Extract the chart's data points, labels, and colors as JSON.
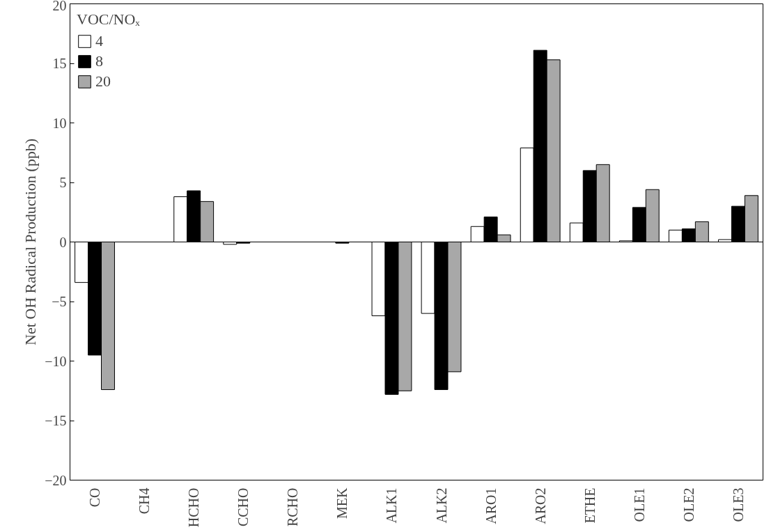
{
  "chart_data": {
    "type": "bar",
    "ylabel": "Net OH Radical Production (ppb)",
    "legend_title": "VOC/NOₓ",
    "categories": [
      "CO",
      "CH4",
      "HCHO",
      "CCHO",
      "RCHO",
      "MEK",
      "ALK1",
      "ALK2",
      "ARO1",
      "ARO2",
      "ETHE",
      "OLE1",
      "OLE2",
      "OLE3"
    ],
    "series": [
      {
        "name": "4",
        "color": "#ffffff",
        "values": [
          -3.4,
          null,
          3.8,
          -0.2,
          null,
          null,
          -6.2,
          -6.0,
          1.3,
          7.9,
          1.6,
          0.1,
          1.0,
          0.2
        ]
      },
      {
        "name": "8",
        "color": "#000000",
        "values": [
          -9.5,
          null,
          4.3,
          -0.1,
          null,
          -0.1,
          -12.8,
          -12.4,
          2.1,
          16.1,
          6.0,
          2.9,
          1.1,
          3.0
        ]
      },
      {
        "name": "20",
        "color": "#a8a8a8",
        "values": [
          -12.4,
          null,
          3.4,
          null,
          null,
          null,
          -12.5,
          -10.9,
          0.6,
          15.3,
          6.5,
          4.4,
          1.7,
          3.9
        ]
      }
    ],
    "ref_lines": [
      {
        "axis": "y",
        "value": 0
      }
    ],
    "ylim": [
      -20,
      20
    ],
    "yticks": [
      -20,
      -15,
      -10,
      -5,
      0,
      5,
      10,
      15,
      20
    ],
    "grid": false,
    "legend": "top left"
  }
}
